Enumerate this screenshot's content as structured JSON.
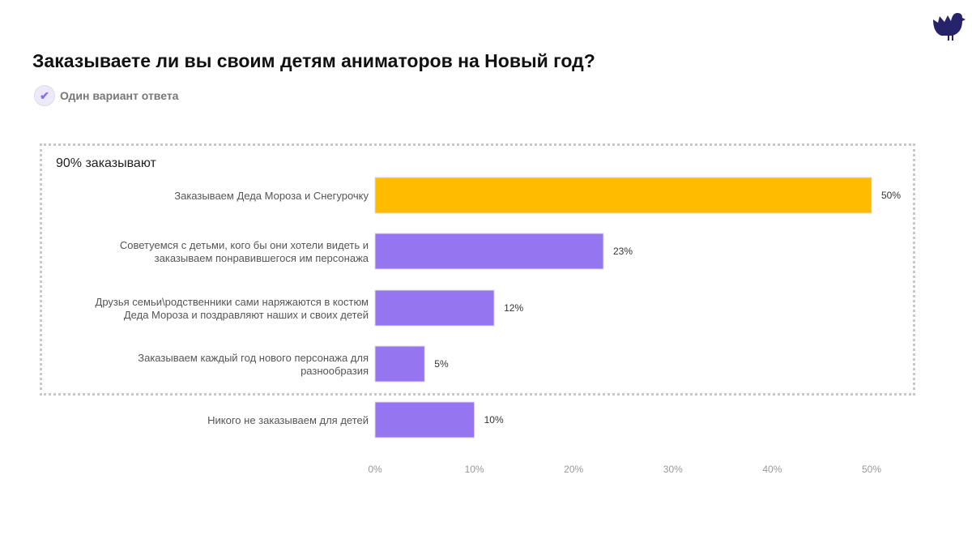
{
  "title": "Заказываете ли вы своим детям аниматоров на Новый год?",
  "subtitle": "Один вариант ответа",
  "icons": {
    "check": "check-circle-icon",
    "logo": "bird-logo-icon"
  },
  "chart_data": {
    "type": "bar",
    "orientation": "horizontal",
    "group_label": "90% заказывают",
    "categories": [
      [
        "Заказываем Деда Мороза и Снегурочку"
      ],
      [
        "Советуемся с детьми, кого бы они хотели видеть и",
        "заказываем понравившегося им персонажа"
      ],
      [
        "Друзья семьи\\родственники сами наряжаются в костюм",
        "Деда Мороза и поздравляют наших и своих детей"
      ],
      [
        "Заказываем каждый год нового персонажа для",
        "разнообразия"
      ],
      [
        "Никого не заказываем для детей"
      ]
    ],
    "values": [
      50,
      23,
      12,
      5,
      10
    ],
    "value_labels": [
      "50%",
      "23%",
      "12%",
      "5%",
      "10%"
    ],
    "colors": [
      "#ffbb00",
      "#9575f0",
      "#9575f0",
      "#9575f0",
      "#9575f0"
    ],
    "xlim": [
      0,
      50
    ],
    "xticks": [
      "0%",
      "10%",
      "20%",
      "30%",
      "40%",
      "50%"
    ],
    "grid": false
  }
}
